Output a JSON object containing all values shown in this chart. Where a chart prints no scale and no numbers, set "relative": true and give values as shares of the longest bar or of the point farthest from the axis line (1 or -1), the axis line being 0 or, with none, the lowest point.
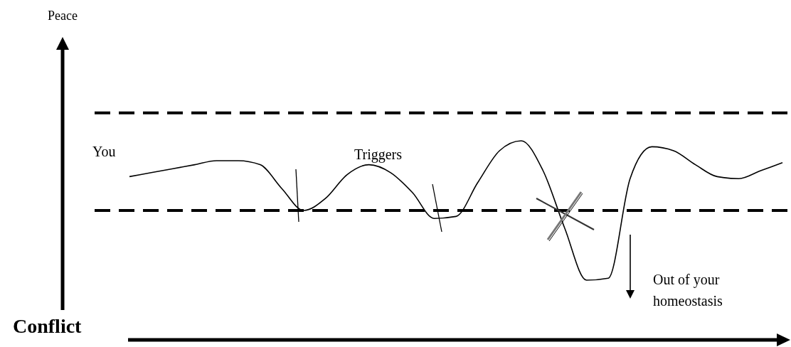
{
  "chart_data": {
    "type": "line",
    "relative": true,
    "categories": [
      null,
      null,
      null,
      null,
      null,
      null,
      null,
      null,
      null,
      null,
      null,
      null,
      null,
      null,
      null,
      null,
      null,
      null,
      null,
      null,
      null,
      null,
      null,
      null,
      null,
      null,
      null,
      null,
      null,
      null,
      null
    ],
    "series": [
      {
        "color": "#000000",
        "values": [
          0.82,
          0.84,
          0.86,
          0.88,
          0.9,
          0.9,
          0.88,
          0.76,
          0.65,
          0.71,
          0.83,
          0.88,
          0.84,
          0.74,
          0.61,
          0.62,
          0.79,
          0.95,
          1.0,
          0.85,
          0.56,
          0.3,
          0.31,
          0.81,
          0.97,
          0.95,
          0.88,
          0.82,
          0.81,
          0.85,
          0.89
        ]
      }
    ],
    "ref_lines": [
      {
        "axis": "y",
        "value": 1.14,
        "color": "#000000",
        "line_style": "dashed"
      },
      {
        "axis": "y",
        "value": 0.65,
        "color": "#000000",
        "line_style": "dashed"
      }
    ],
    "annotations": [
      "Peace",
      "Conflict",
      "You",
      "Triggers",
      "Out of your homeostasis"
    ],
    "grid": false,
    "marker": "none",
    "line_style": "solid"
  }
}
